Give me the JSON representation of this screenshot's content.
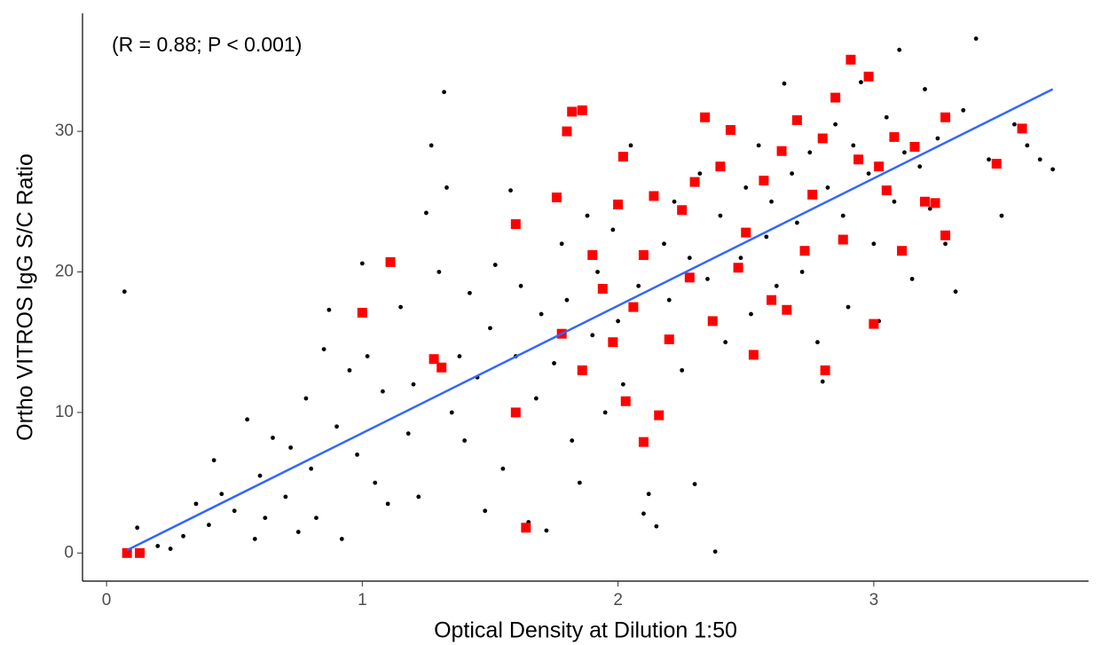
{
  "chart_data": {
    "type": "scatter",
    "annotation": "(R = 0.88; P < 0.001)",
    "x_label": "Optical Density at Dilution 1:50",
    "y_label": "Ortho VITROS IgG S/C Ratio",
    "xlim": [
      -0.094,
      3.84
    ],
    "ylim": [
      -2.0,
      38.4
    ],
    "xticks": [
      0,
      1,
      2,
      3
    ],
    "yticks": [
      0,
      10,
      20,
      30
    ],
    "grid": false,
    "series": [
      {
        "color": "#000000",
        "marker": "circle",
        "x": [
          0.07,
          0.12,
          0.2,
          0.25,
          0.3,
          0.35,
          0.4,
          0.42,
          0.45,
          0.5,
          0.55,
          0.58,
          0.6,
          0.62,
          0.65,
          0.7,
          0.72,
          0.75,
          0.78,
          0.8,
          0.82,
          0.85,
          0.87,
          0.9,
          0.92,
          0.95,
          0.98,
          1.0,
          1.02,
          1.05,
          1.08,
          1.1,
          1.15,
          1.18,
          1.2,
          1.22,
          1.25,
          1.27,
          1.3,
          1.32,
          1.33,
          1.35,
          1.38,
          1.4,
          1.42,
          1.45,
          1.48,
          1.5,
          1.52,
          1.55,
          1.58,
          1.6,
          1.62,
          1.65,
          1.68,
          1.7,
          1.72,
          1.75,
          1.78,
          1.8,
          1.82,
          1.85,
          1.88,
          1.9,
          1.92,
          1.95,
          1.98,
          2.0,
          2.02,
          2.05,
          2.08,
          2.1,
          2.12,
          2.15,
          2.18,
          2.2,
          2.22,
          2.25,
          2.28,
          2.3,
          2.32,
          2.35,
          2.38,
          2.4,
          2.42,
          2.45,
          2.48,
          2.5,
          2.52,
          2.55,
          2.58,
          2.6,
          2.62,
          2.65,
          2.68,
          2.7,
          2.72,
          2.75,
          2.78,
          2.8,
          2.82,
          2.85,
          2.88,
          2.9,
          2.92,
          2.95,
          2.98,
          3.0,
          3.02,
          3.05,
          3.08,
          3.1,
          3.12,
          3.15,
          3.18,
          3.2,
          3.22,
          3.25,
          3.28,
          3.32,
          3.35,
          3.4,
          3.45,
          3.5,
          3.55,
          3.6,
          3.65,
          3.7
        ],
        "values": [
          18.6,
          1.8,
          0.5,
          0.3,
          1.2,
          3.5,
          2.0,
          6.6,
          4.2,
          3.0,
          9.5,
          1.0,
          5.5,
          2.5,
          8.2,
          4.0,
          7.5,
          1.5,
          11.0,
          6.0,
          2.5,
          14.5,
          17.3,
          9.0,
          1.0,
          13.0,
          7.0,
          20.6,
          14.0,
          5.0,
          11.5,
          3.5,
          17.5,
          8.5,
          12.0,
          4.0,
          24.2,
          29.0,
          20.0,
          32.8,
          26.0,
          10.0,
          14.0,
          8.0,
          18.5,
          12.5,
          3.0,
          16.0,
          20.5,
          6.0,
          25.8,
          14.0,
          19.0,
          2.2,
          11.0,
          17.0,
          1.6,
          13.5,
          22.0,
          18.0,
          8.0,
          5.0,
          24.0,
          15.5,
          20.0,
          10.0,
          23.0,
          16.5,
          12.0,
          29.0,
          19.0,
          2.8,
          4.2,
          1.9,
          22.0,
          18.0,
          25.0,
          13.0,
          21.0,
          4.9,
          27.0,
          19.5,
          0.1,
          24.0,
          15.0,
          30.0,
          21.0,
          26.0,
          17.0,
          29.0,
          22.5,
          25.0,
          19.0,
          33.4,
          27.0,
          23.5,
          20.0,
          28.5,
          15.0,
          12.2,
          26.0,
          30.5,
          24.0,
          17.5,
          29.0,
          33.5,
          27.0,
          22.0,
          16.5,
          31.0,
          25.0,
          35.8,
          28.5,
          19.5,
          27.5,
          33.0,
          24.5,
          29.5,
          22.0,
          18.6,
          31.5,
          36.6,
          28.0,
          24.0,
          30.5,
          29.0,
          28.0,
          27.3
        ]
      },
      {
        "color": "#ff0000",
        "marker": "square",
        "x": [
          0.08,
          0.13,
          1.0,
          1.11,
          1.28,
          1.31,
          1.6,
          1.6,
          1.64,
          1.76,
          1.78,
          1.8,
          1.82,
          1.86,
          1.86,
          1.9,
          1.94,
          1.98,
          2.0,
          2.02,
          2.03,
          2.06,
          2.1,
          2.1,
          2.14,
          2.16,
          2.2,
          2.25,
          2.28,
          2.3,
          2.34,
          2.37,
          2.4,
          2.44,
          2.47,
          2.5,
          2.53,
          2.57,
          2.6,
          2.64,
          2.66,
          2.7,
          2.73,
          2.76,
          2.8,
          2.81,
          2.85,
          2.88,
          2.91,
          2.94,
          2.98,
          3.0,
          3.02,
          3.05,
          3.08,
          3.11,
          3.16,
          3.2,
          3.24,
          3.28,
          3.28,
          3.48,
          3.58
        ],
        "values": [
          0,
          0,
          17.1,
          20.7,
          13.8,
          13.2,
          23.4,
          10.0,
          1.8,
          25.3,
          15.6,
          30.0,
          31.4,
          31.5,
          13.0,
          21.2,
          18.8,
          15.0,
          24.8,
          28.2,
          10.8,
          17.5,
          21.2,
          7.9,
          25.4,
          9.8,
          15.2,
          24.4,
          19.6,
          26.4,
          31.0,
          16.5,
          27.5,
          30.1,
          20.3,
          22.8,
          14.1,
          26.5,
          18.0,
          28.6,
          17.3,
          30.8,
          21.5,
          25.5,
          29.5,
          13.0,
          32.4,
          22.3,
          35.1,
          28.0,
          33.9,
          16.3,
          27.5,
          25.8,
          29.6,
          21.5,
          28.9,
          25.0,
          24.9,
          22.6,
          31.0,
          27.7,
          30.2
        ]
      },
      {
        "type": "line",
        "color": "#3366ff",
        "x": [
          0.08,
          3.7
        ],
        "values": [
          0.2,
          33.0
        ]
      }
    ]
  }
}
